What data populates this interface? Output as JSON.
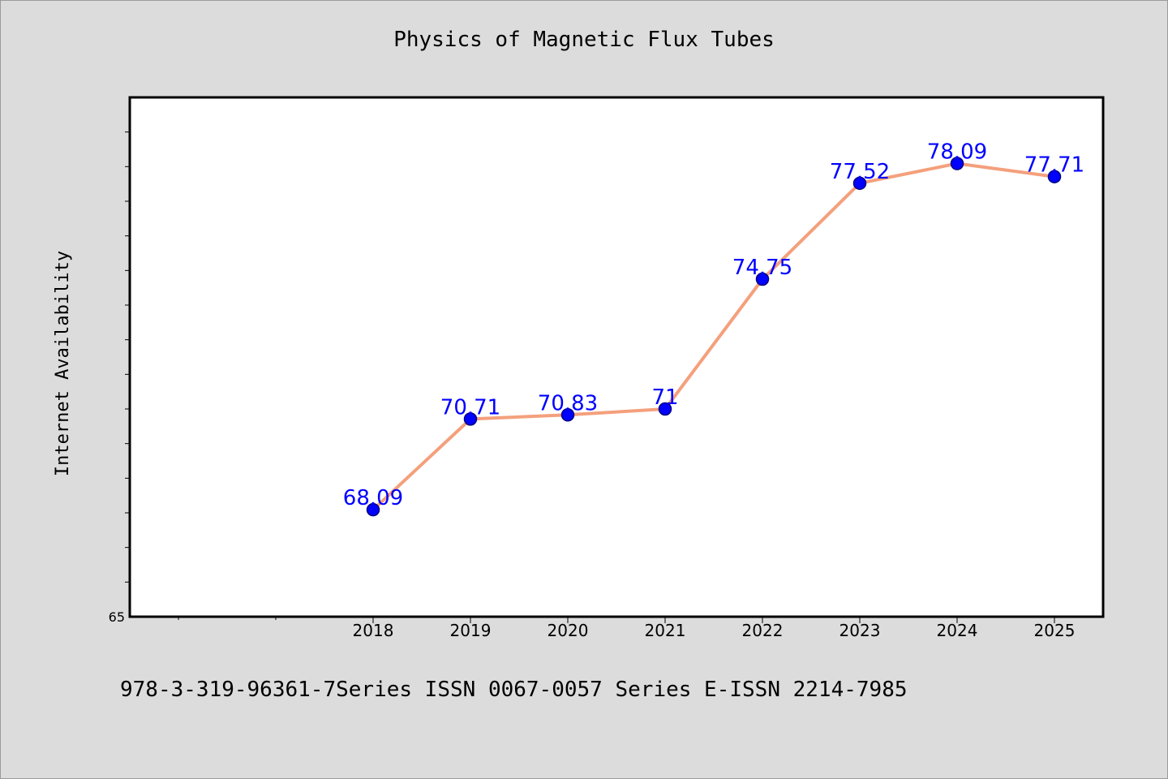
{
  "title": "Physics of Magnetic Flux Tubes",
  "footer": "978-3-319-96361-7Series ISSN 0067-0057 Series E-ISSN 2214-7985",
  "colors": {
    "background": "#dcdcdc",
    "plot_background": "#ffffff",
    "line": "#f4a07c",
    "marker": "#0000ff",
    "marker_edge": "#000080",
    "data_label": "#0000ff"
  },
  "chart_data": {
    "type": "line",
    "categories": [
      "2018",
      "2019",
      "2020",
      "2021",
      "2022",
      "2023",
      "2024",
      "2025"
    ],
    "series": [
      {
        "values": [
          68.09,
          70.71,
          70.83,
          71,
          74.75,
          77.52,
          78.09,
          77.71
        ],
        "labels": [
          "68.09",
          "70.71",
          "70.83",
          "71",
          "74.75",
          "77.52",
          "78.09",
          "77.71"
        ]
      }
    ],
    "title": "Physics of Magnetic Flux Tubes",
    "xlabel": "",
    "ylabel": "Internet Availability",
    "ylim": [
      65,
      80
    ],
    "ytick_labels": [
      "65"
    ],
    "grid": false,
    "legend": "none"
  }
}
